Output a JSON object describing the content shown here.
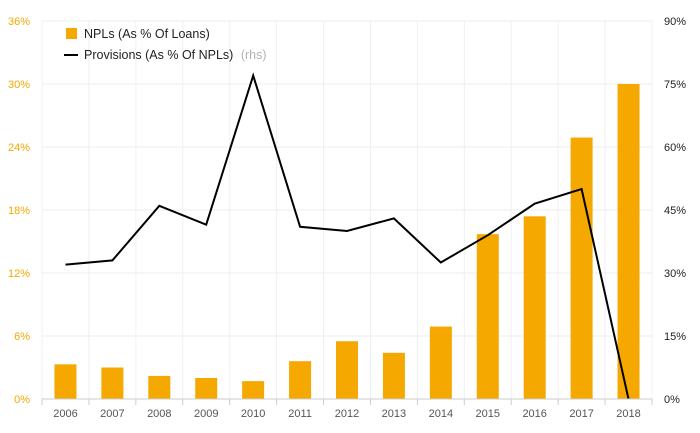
{
  "chart_data": {
    "type": "bar+line",
    "categories": [
      "2006",
      "2007",
      "2008",
      "2009",
      "2010",
      "2011",
      "2012",
      "2013",
      "2014",
      "2015",
      "2016",
      "2017",
      "2018"
    ],
    "series": [
      {
        "name": "NPLs (As % Of Loans)",
        "type": "bar",
        "axis": "left",
        "color": "#f5a800",
        "values": [
          3.3,
          3.0,
          2.2,
          2.0,
          1.7,
          3.6,
          5.5,
          4.4,
          6.9,
          15.7,
          17.4,
          24.9,
          30.0
        ]
      },
      {
        "name": "Provisions (As % Of NPLs)",
        "axis_note": "(rhs)",
        "type": "line",
        "axis": "right",
        "color": "#000000",
        "values": [
          32.0,
          33.0,
          46.0,
          41.5,
          77.0,
          41.0,
          40.0,
          43.0,
          32.5,
          39.0,
          46.5,
          50.0,
          0.0
        ]
      }
    ],
    "left_axis": {
      "ylim": [
        0,
        36
      ],
      "ticks": [
        "0%",
        "6%",
        "12%",
        "18%",
        "24%",
        "30%",
        "36%"
      ]
    },
    "right_axis": {
      "ylim": [
        0,
        90
      ],
      "ticks": [
        "0%",
        "15%",
        "30%",
        "45%",
        "60%",
        "75%",
        "90%"
      ]
    },
    "grid": true,
    "legend": "top-left"
  }
}
